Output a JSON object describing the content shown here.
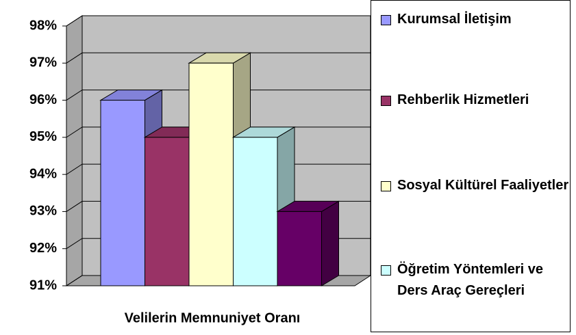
{
  "chart_data": {
    "type": "bar3d",
    "categories": [
      "Velilerin Memnuniyet Oranı"
    ],
    "series": [
      {
        "name": "Kurumsal İletişim",
        "color": "#9999ff",
        "values": [
          96
        ]
      },
      {
        "name": "Rehberlik Hizmetleri",
        "color": "#993366",
        "values": [
          95
        ]
      },
      {
        "name": "Sosyal Kültürel Faaliyetler",
        "color": "#ffffcc",
        "values": [
          97
        ]
      },
      {
        "name": "Öğretim Yöntemleri ve Ders Araç Gereçleri",
        "color": "#ccffff",
        "values": [
          95
        ]
      },
      {
        "name": null,
        "color": "#660066",
        "values": [
          93
        ]
      }
    ],
    "ylim": [
      91,
      98
    ],
    "yticks": [
      {
        "value": 91,
        "label": "91%"
      },
      {
        "value": 92,
        "label": "92%"
      },
      {
        "value": 93,
        "label": "93%"
      },
      {
        "value": 94,
        "label": "94%"
      },
      {
        "value": 95,
        "label": "95%"
      },
      {
        "value": 96,
        "label": "96%"
      },
      {
        "value": 97,
        "label": "97%"
      },
      {
        "value": 98,
        "label": "98%"
      }
    ],
    "grid": true,
    "legend": "right"
  }
}
